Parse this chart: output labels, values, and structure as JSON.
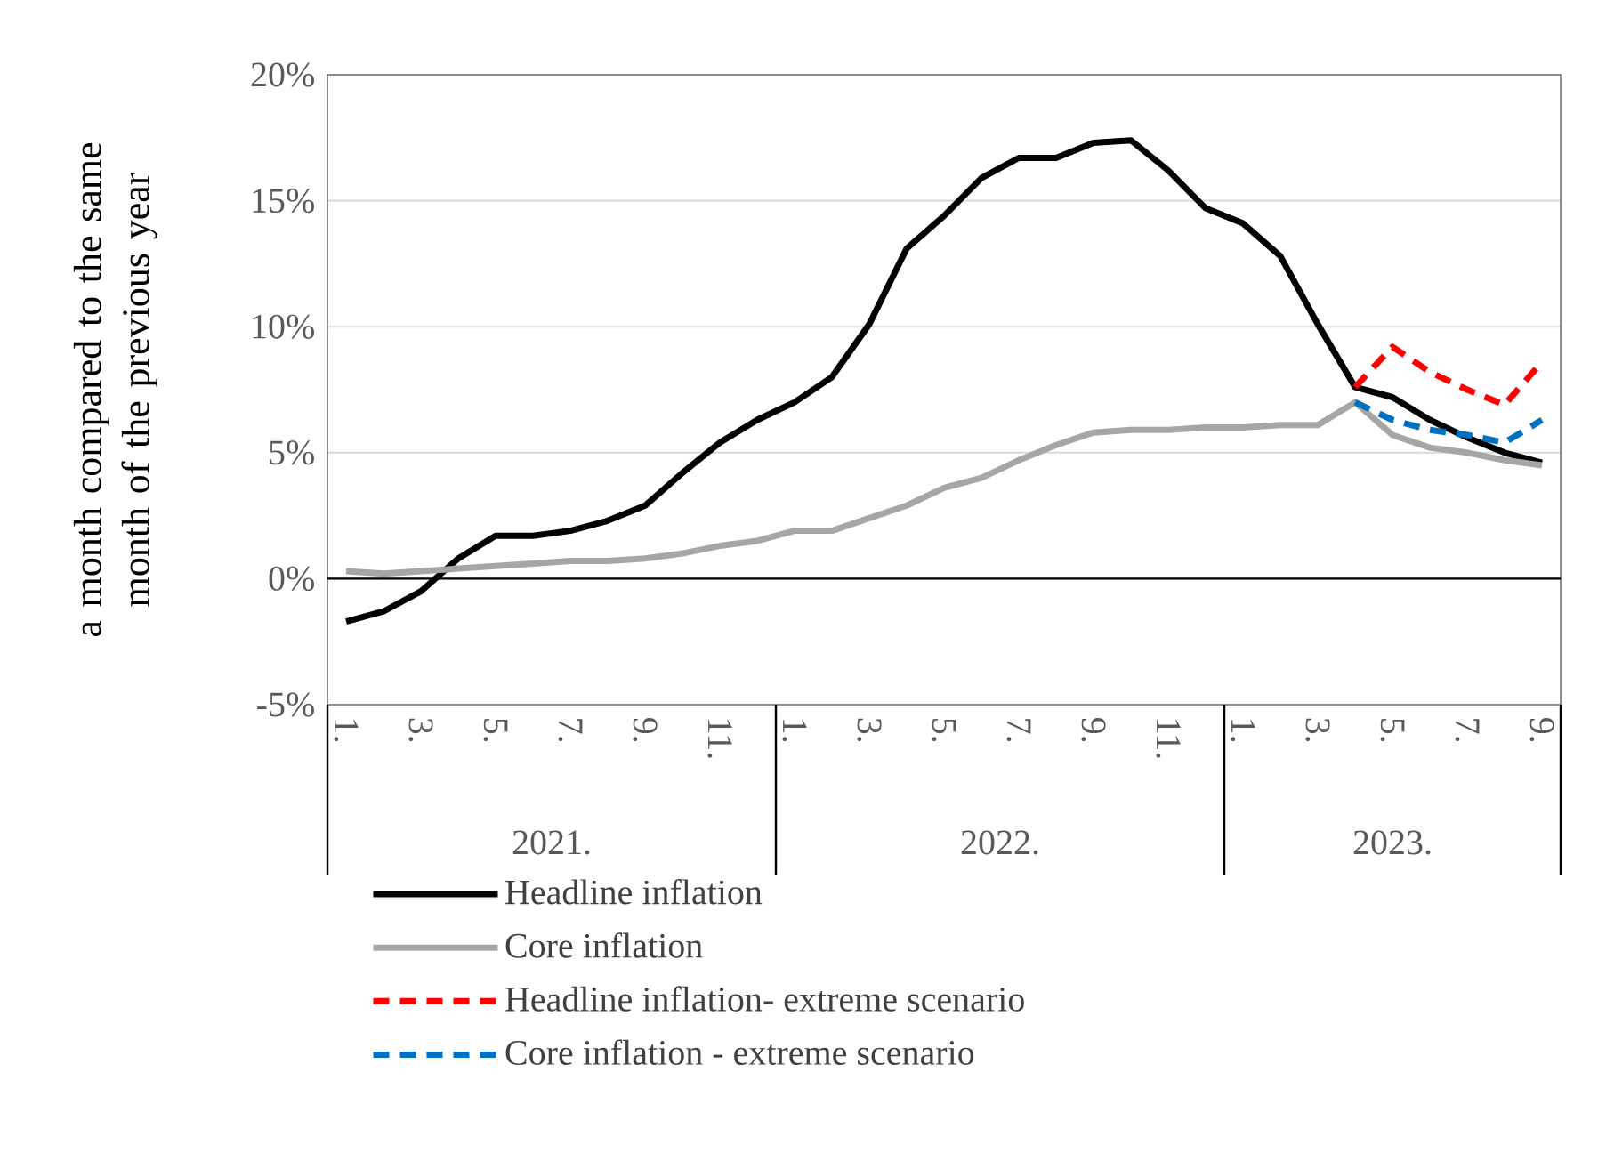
{
  "chart_data": {
    "type": "line",
    "ylabel": "a month compared to the same month of the previous year",
    "categories": [
      "1.",
      null,
      "3.",
      null,
      "5.",
      null,
      "7.",
      null,
      "9.",
      null,
      "11.",
      null,
      "1.",
      null,
      "3.",
      null,
      "5.",
      null,
      "7.",
      null,
      "9.",
      null,
      "11.",
      null,
      "1.",
      null,
      "3.",
      null,
      "5.",
      null,
      "7.",
      null,
      "9."
    ],
    "series": [
      {
        "name": "Headline inflation",
        "color": "#000000",
        "line_style": "solid",
        "values": [
          -1.7,
          -1.3,
          -0.5,
          0.8,
          1.7,
          1.7,
          1.9,
          2.3,
          2.9,
          4.2,
          5.4,
          6.3,
          7.0,
          8.0,
          10.1,
          13.1,
          14.4,
          15.9,
          16.7,
          16.7,
          17.3,
          17.4,
          16.2,
          14.7,
          14.1,
          12.8,
          10.1,
          7.6,
          7.2,
          6.3,
          5.6,
          5.0,
          4.6
        ]
      },
      {
        "name": "Core inflation",
        "color": "#a6a6a6",
        "line_style": "solid",
        "values": [
          0.3,
          0.2,
          0.3,
          0.4,
          0.5,
          0.6,
          0.7,
          0.7,
          0.8,
          1.0,
          1.3,
          1.5,
          1.9,
          1.9,
          2.4,
          2.9,
          3.6,
          4.0,
          4.7,
          5.3,
          5.8,
          5.9,
          5.9,
          6.0,
          6.0,
          6.1,
          6.1,
          7.0,
          5.7,
          5.2,
          5.0,
          4.7,
          4.5
        ]
      },
      {
        "name": "Headline inflation- extreme scenario",
        "color": "#ff0000",
        "line_style": "dashed",
        "values": [
          null,
          null,
          null,
          null,
          null,
          null,
          null,
          null,
          null,
          null,
          null,
          null,
          null,
          null,
          null,
          null,
          null,
          null,
          null,
          null,
          null,
          null,
          null,
          null,
          null,
          null,
          null,
          7.6,
          9.2,
          8.2,
          7.5,
          6.9,
          8.6
        ]
      },
      {
        "name": "Core inflation -  extreme scenario",
        "color": "#0070c0",
        "line_style": "dashed",
        "values": [
          null,
          null,
          null,
          null,
          null,
          null,
          null,
          null,
          null,
          null,
          null,
          null,
          null,
          null,
          null,
          null,
          null,
          null,
          null,
          null,
          null,
          null,
          null,
          null,
          null,
          null,
          null,
          7.0,
          6.3,
          5.9,
          5.7,
          5.4,
          6.3
        ]
      }
    ],
    "ylim": [
      -5,
      20
    ],
    "yticks": [
      {
        "value": -5,
        "label": "-5%"
      },
      {
        "value": 0,
        "label": "0%"
      },
      {
        "value": 5,
        "label": "5%"
      },
      {
        "value": 10,
        "label": "10%"
      },
      {
        "value": 15,
        "label": "15%"
      },
      {
        "value": 20,
        "label": "20%"
      }
    ],
    "grid": "y",
    "legend": "bottom",
    "ref_lines": [
      {
        "axis": "y",
        "value": 0,
        "color": "#000000"
      }
    ],
    "annotations": [
      "2021.",
      "2022.",
      "2023."
    ]
  }
}
